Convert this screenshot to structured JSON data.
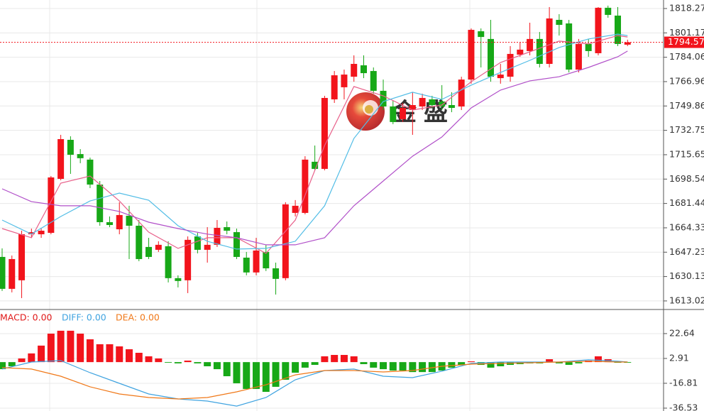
{
  "chart_data": [
    {
      "type": "candlestick",
      "ylim": [
        1607.5,
        1824.25
      ],
      "yticks": [
        1818.27,
        1801.17,
        1784.06,
        1766.96,
        1749.86,
        1732.75,
        1715.65,
        1698.54,
        1681.44,
        1664.33,
        1647.23,
        1630.13,
        1613.02
      ],
      "grid": true,
      "up_color": "#f2141c",
      "down_color": "#17a817",
      "open": [
        1643.9,
        1621.5,
        1627.5,
        1659.8,
        1659.8,
        1660.8,
        1698.7,
        1726.1,
        1716.1,
        1712.2,
        1694.7,
        1668.3,
        1663.3,
        1672.8,
        1665.8,
        1650.9,
        1648.9,
        1651.4,
        1629.0,
        1627.5,
        1658.3,
        1648.9,
        1652.4,
        1664.8,
        1661.3,
        1643.4,
        1633.0,
        1647.4,
        1635.9,
        1629.0,
        1674.8,
        1674.8,
        1710.7,
        1705.7,
        1754.5,
        1763.0,
        1770.4,
        1778.4,
        1774.4,
        1760.5,
        1749.5,
        1740.6,
        1747.0,
        1749.5,
        1754.5,
        1753.0,
        1750.5,
        1749.5,
        1768.4,
        1802.3,
        1796.9,
        1769.4,
        1770.4,
        1785.9,
        1788.4,
        1796.9,
        1779.4,
        1810.3,
        1807.8,
        1775.4,
        1793.4,
        1786.9,
        1818.8,
        1813.3,
        1792.9
      ],
      "high": [
        1649.9,
        1644.9,
        1662.3,
        1663.8,
        1663.8,
        1700.7,
        1729.6,
        1728.6,
        1719.6,
        1713.6,
        1697.2,
        1672.3,
        1682.3,
        1679.8,
        1669.8,
        1657.3,
        1654.9,
        1654.9,
        1631.0,
        1658.3,
        1660.8,
        1664.8,
        1669.8,
        1668.8,
        1663.8,
        1647.4,
        1657.3,
        1652.4,
        1639.9,
        1682.3,
        1683.8,
        1714.6,
        1722.1,
        1757.0,
        1774.4,
        1775.4,
        1785.4,
        1785.4,
        1776.9,
        1768.4,
        1753.5,
        1752.0,
        1759.5,
        1758.5,
        1757.0,
        1764.5,
        1759.5,
        1770.4,
        1804.3,
        1804.3,
        1810.3,
        1779.4,
        1791.9,
        1794.4,
        1808.3,
        1801.8,
        1819.3,
        1814.3,
        1810.3,
        1796.9,
        1796.9,
        1819.3,
        1820.3,
        1819.3,
        1796.4
      ],
      "low": [
        1620.0,
        1619.0,
        1615.0,
        1657.3,
        1657.3,
        1659.8,
        1697.7,
        1702.2,
        1709.7,
        1692.2,
        1665.8,
        1664.8,
        1659.8,
        1642.4,
        1640.9,
        1642.4,
        1647.4,
        1626.0,
        1622.5,
        1618.5,
        1646.4,
        1639.9,
        1650.9,
        1659.8,
        1642.4,
        1631.0,
        1631.0,
        1634.0,
        1617.5,
        1627.5,
        1672.3,
        1673.8,
        1704.7,
        1704.7,
        1752.0,
        1754.5,
        1766.9,
        1769.4,
        1758.5,
        1747.0,
        1737.1,
        1738.6,
        1729.6,
        1747.0,
        1748.5,
        1747.0,
        1745.5,
        1747.0,
        1765.5,
        1776.9,
        1766.9,
        1765.5,
        1766.9,
        1784.4,
        1785.4,
        1776.9,
        1776.9,
        1799.3,
        1773.4,
        1773.4,
        1784.4,
        1785.4,
        1811.8,
        1791.9,
        1791.9
      ],
      "close": [
        1621.5,
        1642.4,
        1659.8,
        1661.3,
        1662.3,
        1699.7,
        1726.6,
        1715.6,
        1713.2,
        1694.7,
        1668.3,
        1666.3,
        1673.3,
        1665.8,
        1642.4,
        1643.9,
        1652.4,
        1629.0,
        1627.0,
        1655.9,
        1648.9,
        1652.4,
        1664.3,
        1662.3,
        1643.9,
        1633.0,
        1648.4,
        1635.9,
        1628.5,
        1680.8,
        1679.8,
        1712.2,
        1705.7,
        1755.5,
        1771.4,
        1771.9,
        1779.4,
        1772.9,
        1760.5,
        1749.5,
        1738.6,
        1748.5,
        1750.5,
        1755.5,
        1750.5,
        1749.5,
        1748.5,
        1768.4,
        1803.3,
        1798.3,
        1770.4,
        1771.9,
        1786.4,
        1789.4,
        1796.9,
        1779.4,
        1811.3,
        1806.8,
        1775.4,
        1793.4,
        1788.4,
        1818.8,
        1813.8,
        1793.4,
        1794.57
      ],
      "lines": [
        {
          "color": "#e8608a",
          "x": [
            0,
            3,
            6,
            9,
            12,
            15,
            18,
            21,
            24,
            27,
            30,
            33,
            36,
            39,
            42,
            45,
            48,
            51,
            54,
            57,
            60,
            63,
            64
          ],
          "values": [
            1663.8,
            1657.4,
            1695.7,
            1700.7,
            1683.2,
            1661.3,
            1649.9,
            1657.4,
            1657.4,
            1646.4,
            1669.8,
            1722.1,
            1763.5,
            1757.0,
            1747.0,
            1750.5,
            1766.9,
            1780.4,
            1787.9,
            1795.4,
            1793.4,
            1799.3,
            1798.3
          ]
        },
        {
          "color": "#52bde6",
          "x": [
            0,
            3,
            6,
            9,
            12,
            15,
            18,
            21,
            24,
            27,
            30,
            33,
            36,
            39,
            42,
            45,
            48,
            51,
            54,
            57,
            60,
            63,
            64
          ],
          "values": [
            1669.8,
            1659.9,
            1672.3,
            1683.2,
            1688.7,
            1683.7,
            1665.8,
            1654.9,
            1649.4,
            1649.9,
            1654.9,
            1679.8,
            1727.1,
            1753.0,
            1759.5,
            1754.5,
            1764.5,
            1773.4,
            1781.9,
            1790.9,
            1796.9,
            1800.3,
            1799.3
          ]
        },
        {
          "color": "#b150c9",
          "x": [
            0,
            3,
            6,
            9,
            12,
            15,
            18,
            21,
            24,
            27,
            30,
            33,
            36,
            39,
            42,
            45,
            48,
            51,
            54,
            57,
            60,
            63,
            64
          ],
          "values": [
            1691.7,
            1682.7,
            1679.8,
            1679.8,
            1675.8,
            1668.3,
            1663.8,
            1659.9,
            1657.4,
            1652.4,
            1652.4,
            1657.4,
            1679.8,
            1697.2,
            1714.6,
            1728.1,
            1748.5,
            1761.0,
            1767.5,
            1770.4,
            1776.9,
            1784.4,
            1788.4
          ]
        }
      ],
      "current_price": 1794.57,
      "current_price_color": "#f2141c",
      "watermark": "金盛"
    },
    {
      "type": "macd",
      "ylim": [
        -38.8,
        41.2
      ],
      "yticks": [
        22.64,
        2.91,
        -16.81,
        -36.53
      ],
      "legend": [
        {
          "text": "MACD: 0.00",
          "color": "#e01818"
        },
        {
          "text": "DIFF: 0.00",
          "color": "#3fa3e0"
        },
        {
          "text": "DEA: 0.00",
          "color": "#f07818"
        }
      ],
      "up_color": "#f2141c",
      "down_color": "#17a817",
      "histogram": [
        -5.6,
        -3.3,
        2.9,
        6.9,
        13.1,
        22.6,
        24.9,
        24.9,
        22.6,
        18.1,
        14.2,
        14.2,
        12.5,
        10.2,
        7.4,
        4.6,
        2.9,
        -0.5,
        -1.0,
        1.2,
        -1.0,
        -3.3,
        -5.6,
        -11.2,
        -16.8,
        -21.3,
        -21.3,
        -23.6,
        -19.6,
        -14.0,
        -8.4,
        -4.4,
        -2.2,
        4.6,
        5.7,
        5.7,
        4.6,
        -1.6,
        -4.4,
        -5.6,
        -6.7,
        -6.7,
        -7.9,
        -7.9,
        -7.9,
        -6.7,
        -4.4,
        -2.2,
        0.6,
        -2.2,
        -4.4,
        -3.3,
        -2.2,
        -1.6,
        -1.0,
        -1.0,
        2.3,
        -1.0,
        -2.2,
        -1.0,
        1.2,
        4.6,
        2.3,
        -0.5,
        -0.5
      ],
      "lines": [
        {
          "color": "#3fa3e0",
          "x": [
            0,
            3,
            6,
            9,
            12,
            15,
            18,
            21,
            24,
            27,
            30,
            33,
            36,
            39,
            42,
            45,
            48,
            51,
            54,
            57,
            60,
            63,
            64
          ],
          "values": [
            -5.5,
            0.1,
            1.2,
            -8.4,
            -16.8,
            -25.3,
            -29.2,
            -30.9,
            -34.9,
            -28.1,
            -14.0,
            -6.7,
            -5.5,
            -11.2,
            -12.3,
            -7.2,
            -1.0,
            0.1,
            0.1,
            0.1,
            1.8,
            0.7,
            0.1
          ]
        },
        {
          "color": "#f07818",
          "x": [
            0,
            3,
            6,
            9,
            12,
            15,
            18,
            21,
            24,
            27,
            30,
            33,
            36,
            39,
            42,
            45,
            48,
            51,
            54,
            57,
            60,
            63,
            64
          ],
          "values": [
            -4.4,
            -5.5,
            -11.2,
            -19.6,
            -25.3,
            -28.1,
            -29.2,
            -28.1,
            -23.6,
            -18.0,
            -10.1,
            -6.7,
            -6.7,
            -7.8,
            -6.7,
            -3.3,
            -1.6,
            -1.0,
            -0.5,
            0.1,
            0.7,
            0.1,
            0.1
          ]
        }
      ]
    }
  ]
}
